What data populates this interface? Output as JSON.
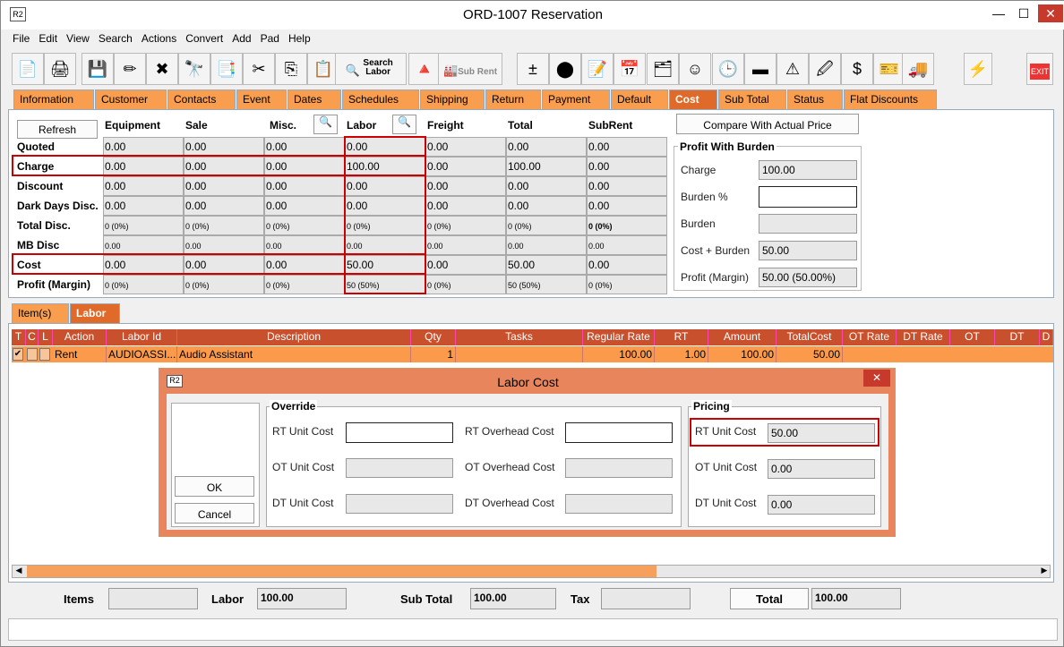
{
  "window": {
    "title": "ORD-1007 Reservation",
    "minimize": "—",
    "maximize": "☐",
    "close": "✕",
    "logo": "R2"
  },
  "menu": [
    "File",
    "Edit",
    "View",
    "Search",
    "Actions",
    "Convert",
    "Add",
    "Pad",
    "Help"
  ],
  "toolbar": {
    "icons": [
      "new-document",
      "print",
      "save",
      "edit-pencil",
      "delete",
      "binoculars",
      "copy-order",
      "cut",
      "copy",
      "paste",
      "search-labor",
      "shapes",
      "sub-rent",
      "add-remove",
      "group",
      "notes",
      "calendar",
      "org-chart",
      "smiley",
      "clock-doc",
      "ingot",
      "alert-person",
      "edit-doc",
      "currency",
      "coupons",
      "truck",
      "lightning",
      "exit"
    ],
    "search_labor": "Search Labor",
    "sub_rent": "Sub Rent",
    "exit": "EXIT"
  },
  "tabs": [
    "Information",
    "Customer",
    "Contacts",
    "Event",
    "Dates",
    "Schedules",
    "Shipping",
    "Return",
    "Payment",
    "Default",
    "Cost",
    "Sub Total",
    "Status",
    "Flat Discounts"
  ],
  "active_tab": "Cost",
  "cost": {
    "refresh": "Refresh",
    "columns": [
      "Equipment",
      "Sale",
      "Misc.",
      "Labor",
      "Freight",
      "Total",
      "SubRent"
    ],
    "rows": [
      {
        "label": "Quoted",
        "values": [
          "0.00",
          "0.00",
          "0.00",
          "0.00",
          "0.00",
          "0.00",
          "0.00"
        ]
      },
      {
        "label": "Charge",
        "values": [
          "0.00",
          "0.00",
          "0.00",
          "100.00",
          "0.00",
          "100.00",
          "0.00"
        ]
      },
      {
        "label": "Discount",
        "values": [
          "0.00",
          "0.00",
          "0.00",
          "0.00",
          "0.00",
          "0.00",
          "0.00"
        ]
      },
      {
        "label": "Dark Days Disc.",
        "values": [
          "0.00",
          "0.00",
          "0.00",
          "0.00",
          "0.00",
          "0.00",
          "0.00"
        ]
      },
      {
        "label": "Total Disc.",
        "values": [
          "0 (0%)",
          "0 (0%)",
          "0 (0%)",
          "0 (0%)",
          "0 (0%)",
          "0 (0%)",
          "0 (0%)"
        ]
      },
      {
        "label": "MB Disc",
        "values": [
          "0.00",
          "0.00",
          "0.00",
          "0.00",
          "0.00",
          "0.00",
          "0.00"
        ]
      },
      {
        "label": "Cost",
        "values": [
          "0.00",
          "0.00",
          "0.00",
          "50.00",
          "0.00",
          "50.00",
          "0.00"
        ]
      },
      {
        "label": "Profit (Margin)",
        "values": [
          "0 (0%)",
          "0 (0%)",
          "0 (0%)",
          "50 (50%)",
          "0 (0%)",
          "50 (50%)",
          "0 (0%)"
        ]
      }
    ],
    "compare": "Compare With Actual Price",
    "profit": {
      "title": "Profit With Burden",
      "charge_label": "Charge",
      "charge": "100.00",
      "burden_pct_label": "Burden %",
      "burden_pct": "",
      "burden_label": "Burden",
      "burden": "",
      "cost_burden_label": "Cost + Burden",
      "cost_burden": "50.00",
      "profit_label": "Profit (Margin)",
      "profit": "50.00 (50.00%)"
    }
  },
  "subtabs": [
    "Item(s)",
    "Labor"
  ],
  "grid": {
    "headers": [
      "T",
      "C",
      "L",
      "Action",
      "Labor Id",
      "Description",
      "Qty",
      "Tasks",
      "Regular Rate",
      "RT",
      "Amount",
      "TotalCost",
      "OT Rate",
      "DT Rate",
      "OT",
      "DT",
      "D"
    ],
    "row": {
      "checked": [
        true,
        false,
        false
      ],
      "action": "Rent",
      "labor_id": "AUDIOASSI...",
      "description": "Audio Assistant",
      "qty": "1",
      "tasks": "",
      "regular_rate": "100.00",
      "rt": "1.00",
      "amount": "100.00",
      "total_cost": "50.00"
    }
  },
  "dialog": {
    "title": "Labor Cost",
    "logo": "R2",
    "close": "✕",
    "ok": "OK",
    "cancel": "Cancel",
    "override": {
      "title": "Override",
      "rt_unit": "RT Unit Cost",
      "ot_unit": "OT Unit Cost",
      "dt_unit": "DT Unit Cost",
      "rt_overhead": "RT Overhead Cost",
      "ot_overhead": "OT Overhead Cost",
      "dt_overhead": "DT Overhead Cost",
      "rt_unit_value": "",
      "rt_overhead_value": ""
    },
    "pricing": {
      "title": "Pricing",
      "rt_unit": "RT Unit Cost",
      "rt_unit_value": "50.00",
      "ot_unit": "OT Unit Cost",
      "ot_unit_value": "0.00",
      "dt_unit": "DT Unit Cost",
      "dt_unit_value": "0.00"
    }
  },
  "footer": {
    "items_label": "Items",
    "items": "",
    "labor_label": "Labor",
    "labor": "100.00",
    "subtotal_label": "Sub Total",
    "subtotal": "100.00",
    "tax_label": "Tax",
    "tax": "",
    "total_label": "Total",
    "total": "100.00"
  },
  "colors": {
    "tab": "#f99d4e",
    "active_tab": "#e06a2a",
    "grid_header": "#c9502c",
    "highlight": "#cc0000"
  }
}
